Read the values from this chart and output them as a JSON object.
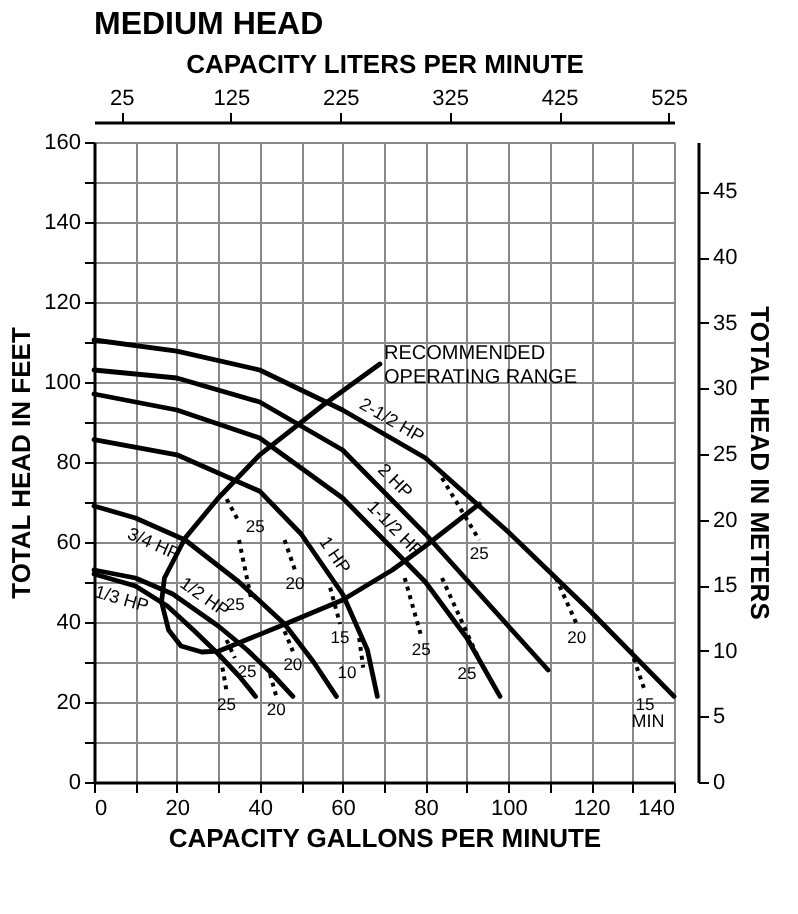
{
  "chart_data": {
    "type": "line",
    "title": "MEDIUM HEAD",
    "xlabel": "CAPACITY GALLONS PER MINUTE",
    "ylabel": "TOTAL HEAD IN FEET",
    "x2label": "CAPACITY LITERS PER MINUTE",
    "y2label": "TOTAL HEAD IN METERS",
    "xlim": [
      0,
      140
    ],
    "xticks": [
      0,
      {
        "value": 10,
        "label": null
      },
      20,
      {
        "value": 30,
        "label": null
      },
      40,
      {
        "value": 50,
        "label": null
      },
      60,
      {
        "value": 70,
        "label": null
      },
      80,
      {
        "value": 90,
        "label": null
      },
      100,
      {
        "value": 110,
        "label": null
      },
      120,
      {
        "value": 130,
        "label": null
      },
      140
    ],
    "ylim": [
      0,
      160
    ],
    "yticks": [
      0,
      {
        "value": 10,
        "label": null
      },
      20,
      {
        "value": 30,
        "label": null
      },
      40,
      {
        "value": 50,
        "label": null
      },
      60,
      {
        "value": 70,
        "label": null
      },
      80,
      {
        "value": 90,
        "label": null
      },
      100,
      {
        "value": 110,
        "label": null
      },
      120,
      {
        "value": 130,
        "label": null
      },
      140,
      {
        "value": 150,
        "label": null
      },
      160
    ],
    "x2lim": [
      0,
      529.96
    ],
    "x2ticks": [
      25,
      125,
      225,
      325,
      425,
      525
    ],
    "y2lim": [
      0,
      48.77
    ],
    "y2ticks": [
      0,
      5,
      10,
      15,
      20,
      25,
      30,
      35,
      40,
      45
    ],
    "grid": true,
    "marker": "none",
    "series": [
      {
        "name": "2-1/2 HP",
        "color": "#000000",
        "line_style": "solid",
        "x": [
          0,
          20,
          40,
          60,
          80,
          100,
          120,
          140
        ],
        "values": [
          110.5,
          107.7,
          103,
          93,
          81,
          62.5,
          42.5,
          21.4
        ]
      },
      {
        "name": "2 HP",
        "color": "#000000",
        "line_style": "solid",
        "x": [
          0,
          20,
          40,
          60,
          80,
          100,
          109.6
        ],
        "values": [
          103,
          101,
          95,
          83,
          62,
          39,
          28
        ]
      },
      {
        "name": "1-1/2 HP",
        "color": "#000000",
        "line_style": "solid",
        "x": [
          0,
          20,
          40,
          60,
          80,
          90,
          98
        ],
        "values": [
          97,
          93,
          86,
          71,
          50,
          36,
          21.4
        ]
      },
      {
        "name": "1 HP",
        "color": "#000000",
        "line_style": "solid",
        "x": [
          0,
          20,
          40,
          50,
          60,
          66,
          68.4
        ],
        "values": [
          85.6,
          81.8,
          72.7,
          62,
          47,
          33,
          21.4
        ]
      },
      {
        "name": "3/4 HP",
        "color": "#000000",
        "line_style": "solid",
        "x": [
          0,
          10,
          22,
          35,
          46,
          53,
          58.5
        ],
        "values": [
          69,
          66,
          60.5,
          50,
          39.5,
          30,
          21.4
        ]
      },
      {
        "name": "1/2 HP",
        "color": "#000000",
        "line_style": "solid",
        "x": [
          0,
          10,
          19,
          30,
          37,
          43,
          48
        ],
        "values": [
          53,
          51,
          47,
          39,
          33,
          27,
          21.4
        ]
      },
      {
        "name": "1/3 HP",
        "color": "#000000",
        "line_style": "solid",
        "x": [
          0,
          10,
          17.7,
          24,
          30,
          35,
          39
        ],
        "values": [
          52,
          49,
          44,
          38,
          32,
          26.5,
          21.4
        ]
      },
      {
        "color": "#000000",
        "line_style": "solid",
        "x": [
          69,
          55,
          40,
          30,
          22,
          17,
          16.3,
          18,
          21,
          26,
          30,
          45,
          60,
          72,
          80,
          93
        ],
        "values": [
          104.5,
          94,
          81.8,
          71,
          61,
          51,
          45,
          38,
          34,
          32.5,
          32.7,
          39,
          45.5,
          53,
          59,
          69.5
        ]
      },
      {
        "name": "25",
        "color": "#000000",
        "line_style": "dotted",
        "x": [
          31,
          32
        ],
        "values": [
          28.6,
          22.7
        ]
      },
      {
        "name": "25",
        "color": "#000000",
        "line_style": "dotted",
        "x": [
          32,
          34
        ],
        "values": [
          35.5,
          31
        ]
      },
      {
        "name": "20",
        "color": "#000000",
        "line_style": "dotted",
        "x": [
          42.5,
          44
        ],
        "values": [
          27,
          21.4
        ]
      },
      {
        "name": "25",
        "color": "#000000",
        "line_style": "dotted",
        "x": [
          35,
          38
        ],
        "values": [
          60.5,
          45.5
        ]
      },
      {
        "name": "20",
        "color": "#000000",
        "line_style": "dotted",
        "x": [
          46,
          48
        ],
        "values": [
          37.7,
          32.7
        ]
      },
      {
        "name": "25",
        "color": "#000000",
        "line_style": "dotted",
        "x": [
          31,
          35
        ],
        "values": [
          72.7,
          65
        ]
      },
      {
        "name": "20",
        "color": "#000000",
        "line_style": "dotted",
        "x": [
          46,
          48.5
        ],
        "values": [
          60.5,
          53
        ]
      },
      {
        "name": "15",
        "color": "#000000",
        "line_style": "dotted",
        "x": [
          57,
          59.4
        ],
        "values": [
          48.6,
          39.5
        ]
      },
      {
        "name": "10",
        "color": "#000000",
        "line_style": "dotted",
        "x": [
          64,
          65
        ],
        "values": [
          36,
          28.6
        ]
      },
      {
        "name": "25",
        "color": "#000000",
        "line_style": "dotted",
        "x": [
          75,
          79
        ],
        "values": [
          51,
          36.4
        ]
      },
      {
        "name": "25",
        "color": "#000000",
        "line_style": "dotted",
        "x": [
          84,
          93
        ],
        "values": [
          51,
          30.5
        ]
      },
      {
        "name": "25",
        "color": "#000000",
        "line_style": "dotted",
        "x": [
          84,
          93
        ],
        "values": [
          76,
          60.5
        ]
      },
      {
        "name": "20",
        "color": "#000000",
        "line_style": "dotted",
        "x": [
          111.5,
          116.5
        ],
        "values": [
          51,
          39.5
        ]
      },
      {
        "name": "15",
        "color": "#000000",
        "line_style": "dotted",
        "x": [
          129.6,
          133
        ],
        "values": [
          33,
          22.7
        ]
      }
    ],
    "annotations": [
      "RECOMMENDED OPERATING RANGE",
      "MIN"
    ]
  }
}
